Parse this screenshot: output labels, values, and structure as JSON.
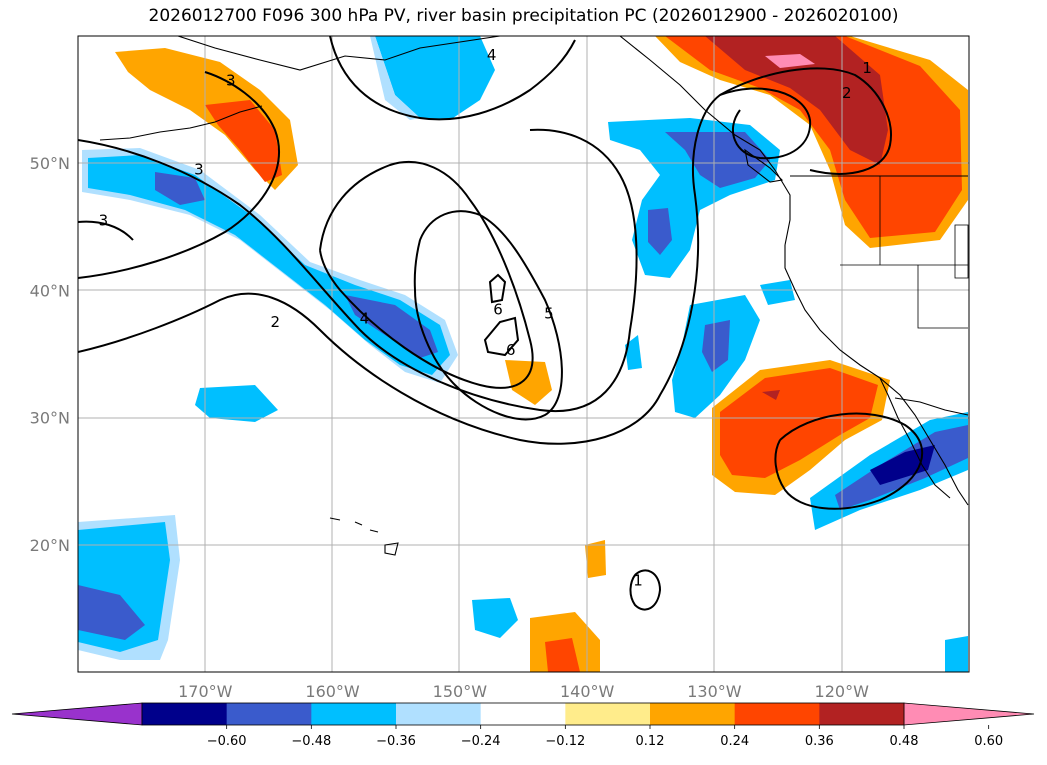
{
  "title": "2026012700 F096 300 hPa PV, river basin precipitation PC (2026012900 - 2026020100)",
  "map": {
    "projection": "plate-carree",
    "lon_range": [
      -180,
      -110
    ],
    "lat_range": [
      10,
      60
    ],
    "gridlines": true,
    "lon_ticks": [
      {
        "value": -170,
        "label": "170°W"
      },
      {
        "value": -160,
        "label": "160°W"
      },
      {
        "value": -150,
        "label": "150°W"
      },
      {
        "value": -140,
        "label": "140°W"
      },
      {
        "value": -130,
        "label": "130°W"
      },
      {
        "value": -120,
        "label": "120°W"
      }
    ],
    "lat_ticks": [
      {
        "value": 50,
        "label": "50°N"
      },
      {
        "value": 40,
        "label": "40°N"
      },
      {
        "value": 30,
        "label": "30°N"
      },
      {
        "value": 20,
        "label": "20°N"
      }
    ],
    "contour_field": "300 hPa PV",
    "contour_labels": [
      {
        "text": "4",
        "lon": -147.5,
        "lat": 58.5
      },
      {
        "text": "3",
        "lon": -168,
        "lat": 56.5
      },
      {
        "text": "3",
        "lon": -170.5,
        "lat": 49.5
      },
      {
        "text": "3",
        "lon": -178,
        "lat": 45.5
      },
      {
        "text": "2",
        "lon": -164.5,
        "lat": 37.5
      },
      {
        "text": "4",
        "lon": -157.5,
        "lat": 37.8
      },
      {
        "text": "6",
        "lon": -147,
        "lat": 38.5
      },
      {
        "text": "6",
        "lon": -146,
        "lat": 35.3
      },
      {
        "text": "5",
        "lon": -143,
        "lat": 38.2
      },
      {
        "text": "1",
        "lon": -118,
        "lat": 57.5
      },
      {
        "text": "2",
        "lon": -119.6,
        "lat": 55.5
      },
      {
        "text": "1",
        "lon": -136,
        "lat": 17.2
      }
    ]
  },
  "colorbar": {
    "field": "river basin precipitation PC",
    "extend": "both",
    "colors": [
      "#9932cc",
      "#00008b",
      "#3a5bcc",
      "#00bfff",
      "#b0e0ff",
      "#ffffff",
      "#ffec8b",
      "#ffa500",
      "#ff4500",
      "#b22222",
      "#ff8cb4"
    ],
    "boundaries": [
      -0.72,
      -0.6,
      -0.48,
      -0.36,
      -0.24,
      -0.12,
      0.12,
      0.24,
      0.36,
      0.48,
      0.6,
      0.72
    ],
    "tick_labels": [
      "−0.60",
      "−0.48",
      "−0.36",
      "−0.24",
      "−0.12",
      "0.12",
      "0.24",
      "0.36",
      "0.48",
      "0.60"
    ]
  },
  "colors": {
    "grid": "#b0b0b0",
    "tick_text": "#7a7a7a",
    "coast": "#000000"
  }
}
